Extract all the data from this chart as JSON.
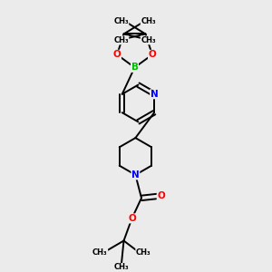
{
  "bg_color": "#ebebeb",
  "bond_color": "#000000",
  "atom_colors": {
    "B": "#00bb00",
    "O": "#ff0000",
    "N": "#0000ff",
    "C": "#000000"
  },
  "line_width": 1.4,
  "font_size_atom": 7.5,
  "font_size_methyl": 6.0,
  "xlim": [
    0.25,
    0.75
  ],
  "ylim": [
    0.02,
    1.02
  ]
}
